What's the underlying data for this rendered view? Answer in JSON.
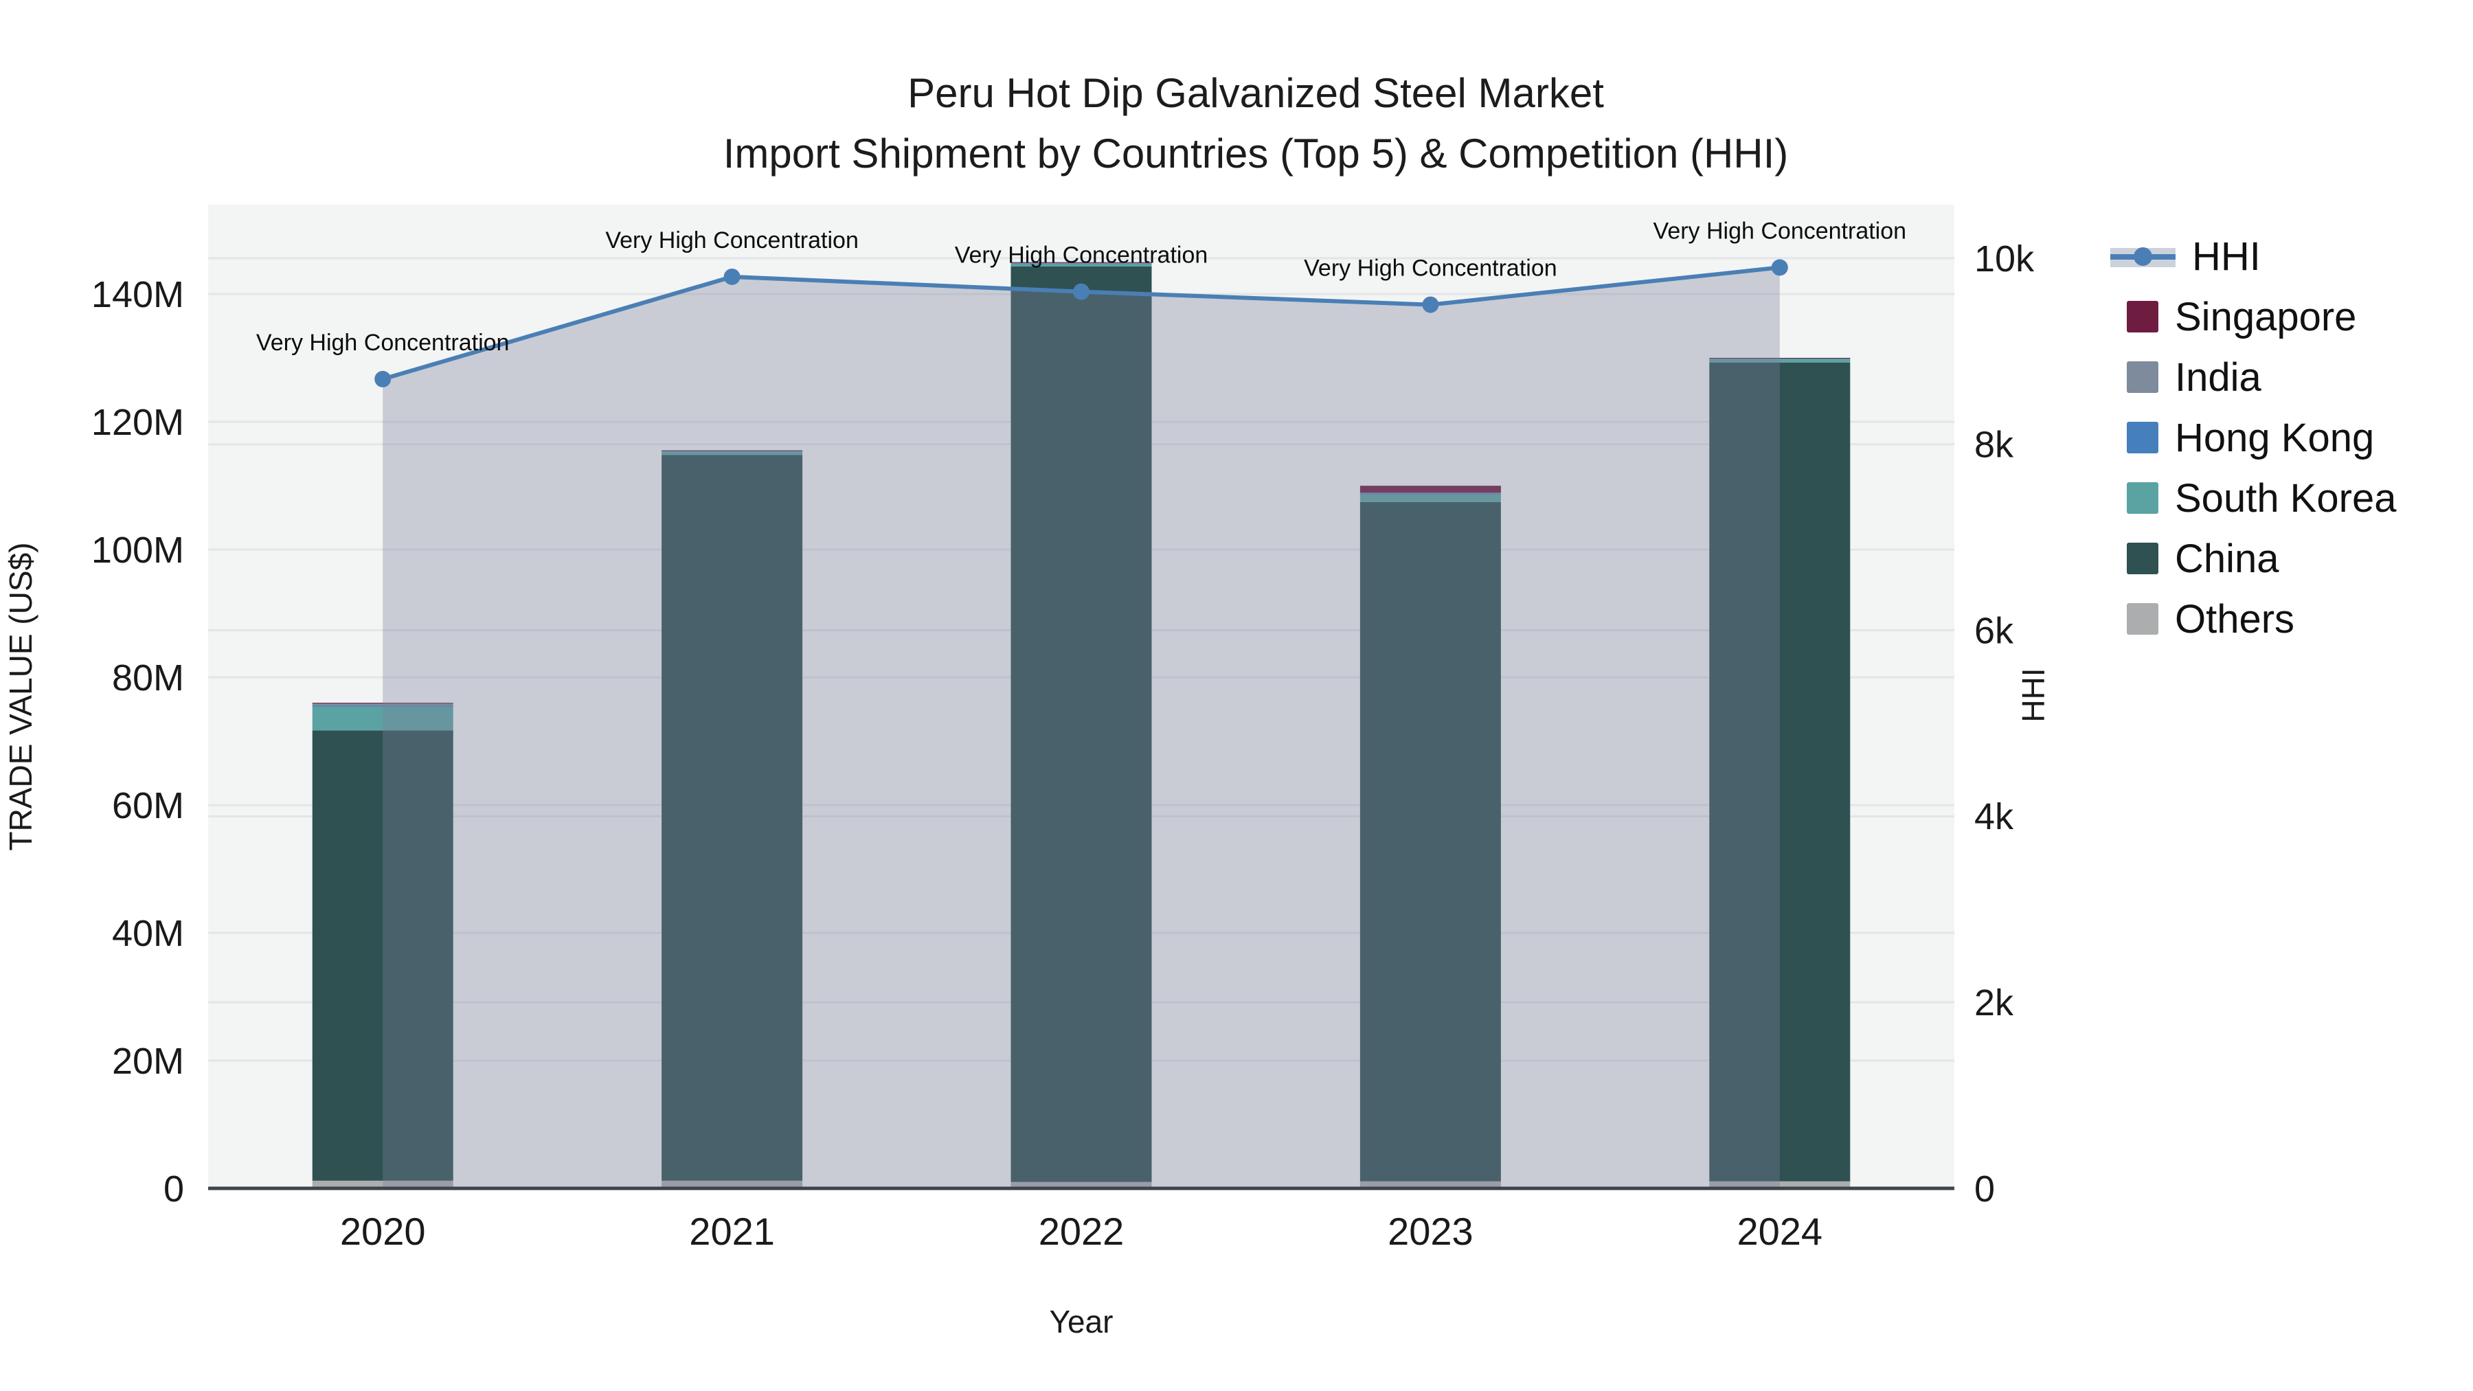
{
  "title": {
    "line1": "Peru Hot Dip Galvanized Steel Market",
    "line2": "Import Shipment by Countries (Top 5) & Competition (HHI)"
  },
  "chart_data": {
    "type": "bar+line",
    "categories": [
      "2020",
      "2021",
      "2022",
      "2023",
      "2024"
    ],
    "x_axis_label": "Year",
    "y_left": {
      "title": "TRADE VALUE (US$)",
      "unit": "M",
      "tick_values": [
        0,
        20,
        40,
        60,
        80,
        100,
        120,
        140
      ],
      "tick_labels": [
        "0",
        "20M",
        "40M",
        "60M",
        "80M",
        "100M",
        "120M",
        "140M"
      ]
    },
    "y_right": {
      "title": "HHI",
      "tick_values": [
        0,
        2000,
        4000,
        6000,
        8000,
        10000
      ],
      "tick_labels": [
        "0",
        "2k",
        "4k",
        "6k",
        "8k",
        "10k"
      ]
    },
    "bar_series": [
      {
        "name": "Others",
        "color": "#ABADAE",
        "values": [
          1.2,
          1.2,
          1.0,
          1.1,
          1.1
        ]
      },
      {
        "name": "China",
        "color": "#2F5152",
        "values": [
          70.5,
          113.6,
          143.35,
          106.35,
          128.2
        ]
      },
      {
        "name": "South Korea",
        "color": "#5BA3A3",
        "values": [
          3.8,
          0.65,
          0.45,
          1.25,
          0.65
        ]
      },
      {
        "name": "Hong Kong",
        "color": "#4680BC",
        "values": [
          0.05,
          0.03,
          0.03,
          0.05,
          0.02
        ]
      },
      {
        "name": "India",
        "color": "#7D8B9C",
        "values": [
          0.45,
          0.05,
          0.12,
          0.15,
          0.03
        ]
      },
      {
        "name": "Singapore",
        "color": "#6E1D41",
        "values": [
          0.02,
          0.02,
          0.05,
          1.1,
          0.02
        ]
      }
    ],
    "bar_totals_millions": [
      76.0,
      115.5,
      145.0,
      110.0,
      130.0
    ],
    "line_series": {
      "name": "HHI",
      "color": "#4A7FB5",
      "area_fill": "rgba(122,130,156,0.35)",
      "values": [
        8700,
        9800,
        9640,
        9500,
        9900
      ]
    },
    "annotations": [
      "Very High Concentration",
      "Very High Concentration",
      "Very High Concentration",
      "Very High Concentration",
      "Very High Concentration"
    ],
    "plot_bg": "#f3f4f4",
    "grid_color": "#e4e5e6",
    "axis_line_color": "#3e444a"
  },
  "legend": {
    "items": [
      {
        "label": "HHI",
        "type": "line",
        "color": "#4A7FB5"
      },
      {
        "label": "Singapore",
        "type": "square",
        "color": "#6E1D41"
      },
      {
        "label": "India",
        "type": "square",
        "color": "#7D8B9C"
      },
      {
        "label": "Hong Kong",
        "type": "square",
        "color": "#4680BC"
      },
      {
        "label": "South Korea",
        "type": "square",
        "color": "#5BA3A3"
      },
      {
        "label": "China",
        "type": "square",
        "color": "#2F5152"
      },
      {
        "label": "Others",
        "type": "square",
        "color": "#ABADAE"
      }
    ]
  }
}
